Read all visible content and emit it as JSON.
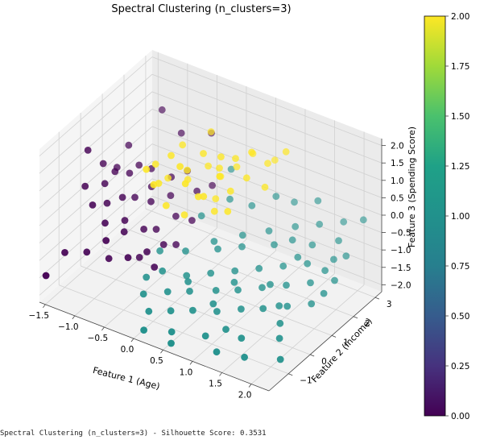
{
  "chart_data": {
    "type": "scatter",
    "projection": "3d",
    "title": "Spectral Clustering (n_clusters=3)",
    "xlabel": "Feature 1 (Age)",
    "ylabel": "Feature 2 (Income)",
    "zlabel": "Feature 3 (Spending Score)",
    "xlim": [
      -1.6,
      2.3
    ],
    "ylim": [
      -1.9,
      3.3
    ],
    "zlim": [
      -2.2,
      2.2
    ],
    "x_ticks": [
      -1.5,
      -1.0,
      -0.5,
      0.0,
      0.5,
      1.0,
      1.5,
      2.0
    ],
    "x_tick_labels": [
      "−1.5",
      "−1.0",
      "−0.5",
      "0.0",
      "0.5",
      "1.0",
      "1.5",
      "2.0"
    ],
    "y_ticks": [
      -1,
      0,
      1,
      2,
      3
    ],
    "y_tick_labels": [
      "−1",
      "0",
      "1",
      "2",
      "3"
    ],
    "z_ticks": [
      -2.0,
      -1.5,
      -1.0,
      -0.5,
      0.0,
      0.5,
      1.0,
      1.5,
      2.0
    ],
    "z_tick_labels": [
      "−2.0",
      "−1.5",
      "−1.0",
      "−0.5",
      "0.0",
      "0.5",
      "1.0",
      "1.5",
      "2.0"
    ],
    "grid": true,
    "colormap": "viridis",
    "color_range": [
      0,
      2
    ],
    "colorbar_ticks": [
      0.0,
      0.25,
      0.5,
      0.75,
      1.0,
      1.25,
      1.5,
      1.75,
      2.0
    ],
    "colorbar_tick_labels": [
      "0.00",
      "0.25",
      "0.50",
      "0.75",
      "1.00",
      "1.25",
      "1.50",
      "1.75",
      "2.00"
    ],
    "colorbar_placement": "right",
    "cluster_colors": [
      "#440154",
      "#21918c",
      "#fde725"
    ],
    "series": [
      {
        "cluster": 0,
        "points": [
          [
            -1.55,
            0.2,
            1.05
          ],
          [
            -1.4,
            0.5,
            0.6
          ],
          [
            -1.45,
            -0.2,
            0.3
          ],
          [
            -1.3,
            0.3,
            0.2
          ],
          [
            -1.35,
            1.0,
            0.25
          ],
          [
            -1.2,
            0.5,
            0.5
          ],
          [
            -1.25,
            -0.4,
            0.0
          ],
          [
            -1.1,
            0.9,
            0.3
          ],
          [
            -1.15,
            0.0,
            -0.1
          ],
          [
            -1.05,
            1.2,
            0.4
          ],
          [
            -1.0,
            0.3,
            0.0
          ],
          [
            -1.0,
            -0.5,
            -0.3
          ],
          [
            -0.95,
            1.5,
            0.2
          ],
          [
            -0.9,
            0.6,
            -0.1
          ],
          [
            -0.85,
            0.0,
            -0.4
          ],
          [
            -0.8,
            1.1,
            0.0
          ],
          [
            -0.75,
            -0.3,
            -0.5
          ],
          [
            -0.7,
            0.8,
            -0.2
          ],
          [
            -0.65,
            1.6,
            0.1
          ],
          [
            -0.6,
            0.2,
            -0.6
          ],
          [
            -0.55,
            1.3,
            -0.2
          ],
          [
            -0.5,
            0.5,
            -0.7
          ],
          [
            -0.45,
            1.8,
            0.3
          ],
          [
            -0.4,
            -0.2,
            -0.9
          ],
          [
            -0.35,
            1.0,
            -0.5
          ],
          [
            -0.3,
            0.3,
            -0.9
          ],
          [
            -0.25,
            1.7,
            -0.1
          ],
          [
            -0.2,
            0.6,
            -1.0
          ],
          [
            -0.15,
            1.2,
            -0.6
          ],
          [
            -0.1,
            2.0,
            0.0
          ],
          [
            -1.5,
            -1.0,
            -1.2
          ],
          [
            -1.2,
            -0.8,
            -1.1
          ],
          [
            -0.9,
            -0.6,
            -1.2
          ],
          [
            -0.6,
            0.0,
            -1.3
          ],
          [
            -1.6,
            -1.6,
            -1.6
          ],
          [
            -1.1,
            2.4,
            1.3
          ],
          [
            -0.7,
            2.2,
            1.0
          ],
          [
            -0.3,
            2.5,
            1.1
          ],
          [
            -0.8,
            -1.0,
            -0.4
          ],
          [
            -0.5,
            -0.8,
            -0.8
          ],
          [
            -1.3,
            1.4,
            0.7
          ],
          [
            -0.2,
            -0.4,
            -1.1
          ]
        ]
      },
      {
        "cluster": 1,
        "points": [
          [
            -0.3,
            -0.5,
            -1.4
          ],
          [
            -0.2,
            -0.9,
            -1.6
          ],
          [
            -0.1,
            -0.3,
            -1.2
          ],
          [
            0.0,
            -1.2,
            -1.8
          ],
          [
            0.1,
            -0.6,
            -1.5
          ],
          [
            0.2,
            0.0,
            -1.3
          ],
          [
            0.3,
            -1.0,
            -1.7
          ],
          [
            0.4,
            -0.4,
            -1.4
          ],
          [
            0.5,
            0.3,
            -1.2
          ],
          [
            0.6,
            -0.8,
            -1.6
          ],
          [
            0.7,
            0.0,
            -1.4
          ],
          [
            0.8,
            0.6,
            -1.1
          ],
          [
            0.9,
            -0.5,
            -1.6
          ],
          [
            1.0,
            0.2,
            -1.3
          ],
          [
            1.1,
            0.9,
            -1.0
          ],
          [
            1.2,
            -0.2,
            -1.5
          ],
          [
            1.3,
            0.5,
            -1.2
          ],
          [
            1.4,
            1.2,
            -0.9
          ],
          [
            1.5,
            0.0,
            -1.4
          ],
          [
            1.6,
            0.8,
            -1.1
          ],
          [
            1.7,
            1.5,
            -0.8
          ],
          [
            1.8,
            0.3,
            -1.3
          ],
          [
            1.9,
            1.1,
            -1.0
          ],
          [
            2.0,
            1.9,
            -0.7
          ],
          [
            2.1,
            0.6,
            -1.2
          ],
          [
            2.2,
            1.4,
            -0.9
          ],
          [
            0.3,
            1.0,
            -0.8
          ],
          [
            0.6,
            1.5,
            -0.7
          ],
          [
            0.9,
            1.9,
            -0.6
          ],
          [
            1.2,
            2.3,
            -0.5
          ],
          [
            1.5,
            2.6,
            -0.4
          ],
          [
            1.8,
            2.9,
            -0.3
          ],
          [
            0.5,
            -1.5,
            -1.9
          ],
          [
            1.0,
            -1.3,
            -1.8
          ],
          [
            1.5,
            -1.0,
            -1.7
          ],
          [
            2.0,
            -0.6,
            -1.6
          ],
          [
            0.2,
            2.0,
            -0.2
          ],
          [
            0.8,
            2.5,
            0.0
          ],
          [
            1.4,
            2.8,
            0.1
          ],
          [
            2.1,
            3.0,
            -0.1
          ],
          [
            0.0,
            0.5,
            -1.0
          ],
          [
            0.4,
            0.9,
            -0.9
          ],
          [
            0.7,
            1.2,
            -0.8
          ],
          [
            1.1,
            1.6,
            -0.7
          ],
          [
            1.6,
            2.0,
            -0.6
          ],
          [
            1.9,
            2.4,
            -0.5
          ],
          [
            0.1,
            -1.7,
            -2.0
          ],
          [
            0.6,
            -1.8,
            -2.0
          ],
          [
            1.3,
            -1.6,
            -1.9
          ],
          [
            1.7,
            -1.4,
            -1.9
          ],
          [
            2.2,
            -1.1,
            -1.8
          ],
          [
            -0.1,
            1.5,
            -0.6
          ],
          [
            0.9,
            0.3,
            -1.2
          ],
          [
            1.3,
            1.9,
            -0.6
          ],
          [
            1.7,
            0.2,
            -1.3
          ],
          [
            2.1,
            2.2,
            -0.7
          ],
          [
            0.5,
            2.2,
            -0.3
          ],
          [
            1.0,
            2.8,
            -0.2
          ],
          [
            -0.4,
            0.4,
            -1.2
          ],
          [
            2.2,
            0.9,
            -1.0
          ],
          [
            1.2,
            -0.9,
            -1.7
          ],
          [
            0.3,
            -0.2,
            -1.3
          ],
          [
            1.5,
            1.6,
            -0.8
          ],
          [
            0.8,
            -0.4,
            -1.5
          ],
          [
            1.9,
            -0.3,
            -1.4
          ],
          [
            0.0,
            2.6,
            0.2
          ],
          [
            2.0,
            1.5,
            -0.8
          ],
          [
            1.4,
            0.6,
            -1.1
          ]
        ]
      },
      {
        "cluster": 2,
        "points": [
          [
            -0.3,
            -0.5,
            1.7
          ],
          [
            -0.2,
            -0.2,
            1.2
          ],
          [
            -0.1,
            0.1,
            1.9
          ],
          [
            0.0,
            -0.4,
            0.8
          ],
          [
            0.1,
            0.3,
            1.5
          ],
          [
            0.2,
            -0.1,
            0.5
          ],
          [
            0.3,
            0.5,
            2.0
          ],
          [
            0.4,
            0.0,
            1.1
          ],
          [
            0.5,
            0.7,
            1.6
          ],
          [
            0.6,
            0.2,
            0.7
          ],
          [
            0.7,
            0.9,
            1.9
          ],
          [
            0.8,
            0.4,
            1.3
          ],
          [
            0.9,
            1.1,
            2.1
          ],
          [
            1.0,
            0.6,
            1.7
          ],
          [
            1.1,
            1.3,
            1.8
          ],
          [
            -0.4,
            0.2,
            1.4
          ],
          [
            0.0,
            0.6,
            1.0
          ],
          [
            0.4,
            -0.6,
            1.8
          ],
          [
            0.2,
            1.0,
            1.3
          ],
          [
            0.6,
            -0.3,
            1.4
          ],
          [
            -0.2,
            0.9,
            1.7
          ],
          [
            0.3,
            1.3,
            0.9
          ],
          [
            0.8,
            -0.1,
            2.0
          ],
          [
            0.5,
            1.5,
            1.2
          ],
          [
            1.2,
            0.9,
            1.4
          ],
          [
            -0.1,
            -0.7,
            1.5
          ],
          [
            0.7,
            1.7,
            1.6
          ],
          [
            0.9,
            0.0,
            1.0
          ],
          [
            0.1,
            1.4,
            2.0
          ],
          [
            0.4,
            0.8,
            0.6
          ],
          [
            1.0,
            1.9,
            1.5
          ],
          [
            -0.3,
            0.5,
            0.9
          ],
          [
            0.6,
            0.5,
            2.1
          ],
          [
            0.2,
            -0.3,
            2.0
          ],
          [
            1.3,
            1.6,
            2.1
          ]
        ]
      }
    ]
  },
  "caption": "Spectral Clustering (n_clusters=3) - Silhouette Score: 0.3531"
}
